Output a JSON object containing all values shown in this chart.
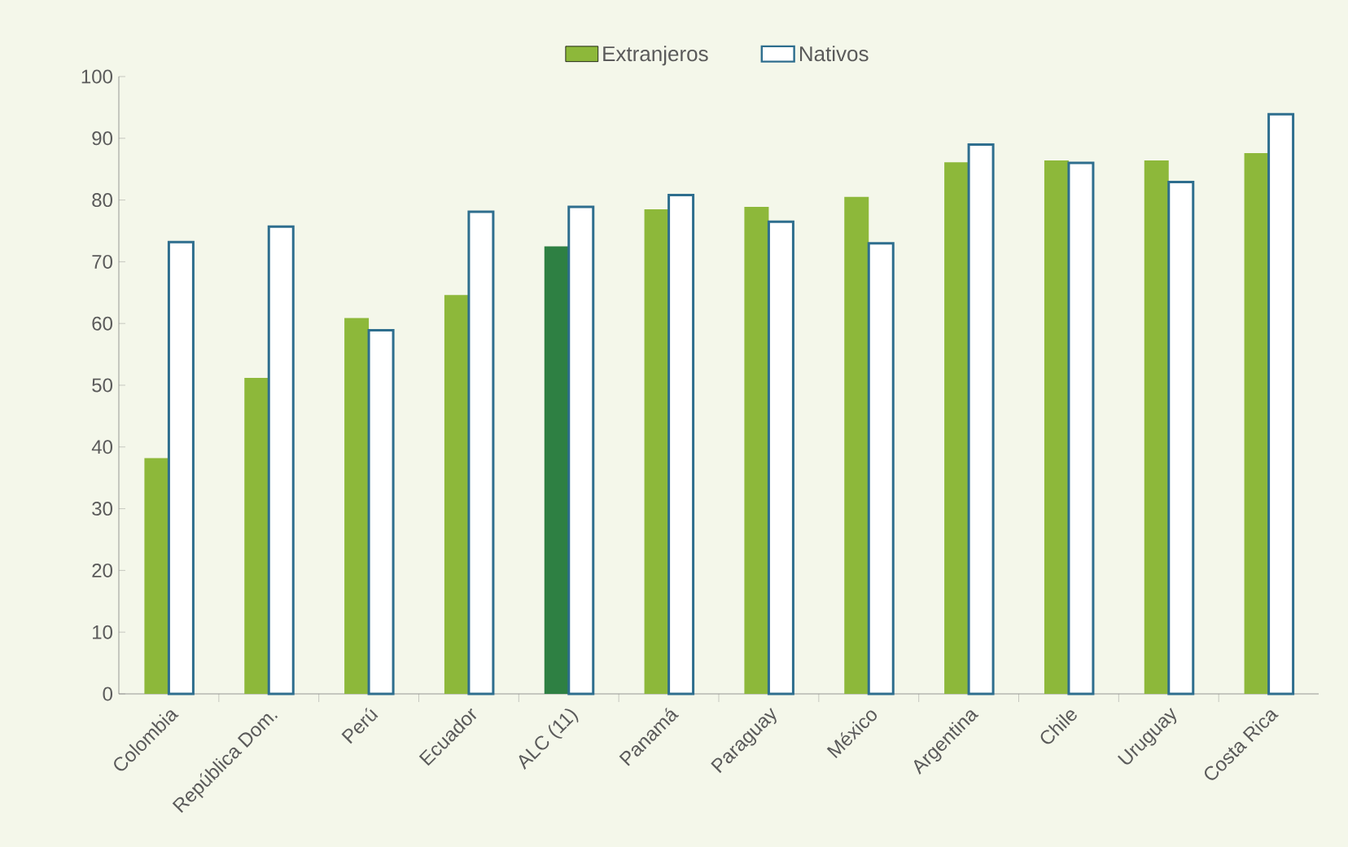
{
  "chart_data": {
    "type": "bar",
    "categories": [
      "Colombia",
      "República Dom.",
      "Perú",
      "Ecuador",
      "ALC (11)",
      "Panamá",
      "Paraguay",
      "México",
      "Argentina",
      "Chile",
      "Uruguay",
      "Costa Rica"
    ],
    "series": [
      {
        "name": "Extranjeros",
        "color": "#8db83a",
        "colors": [
          "#8db83a",
          "#8db83a",
          "#8db83a",
          "#8db83a",
          "#2e8043",
          "#8db83a",
          "#8db83a",
          "#8db83a",
          "#8db83a",
          "#8db83a",
          "#8db83a",
          "#8db83a"
        ],
        "values": [
          38.2,
          51.2,
          60.9,
          64.6,
          72.5,
          78.5,
          78.9,
          80.5,
          86.1,
          86.4,
          86.4,
          87.6
        ]
      },
      {
        "name": "Nativos",
        "color": "#2e6e8e",
        "values": [
          73.2,
          75.7,
          58.9,
          78.1,
          78.9,
          80.8,
          76.5,
          73.0,
          89.0,
          86.0,
          82.9,
          93.9
        ]
      }
    ],
    "ylim": [
      0,
      100
    ],
    "yticks": [
      0,
      10,
      20,
      30,
      40,
      50,
      60,
      70,
      80,
      90,
      100
    ],
    "grid": false,
    "legend": "top"
  }
}
